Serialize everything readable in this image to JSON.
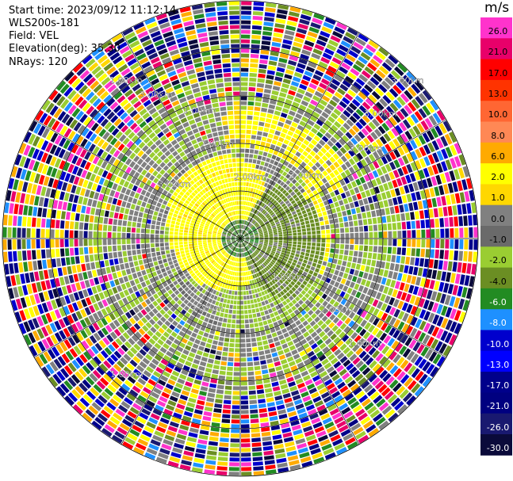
{
  "header": {
    "start_time": "Start time: 2023/09/12 11:12:14",
    "instrument": "WLS200s-181",
    "field": "Field: VEL",
    "elevation": "Elevation(deg): 35.30",
    "nrays": "NRays: 120"
  },
  "colorbar": {
    "unit": "m/s",
    "ticks": [
      "26.0",
      "21.0",
      "17.0",
      "13.0",
      "10.0",
      "8.0",
      "6.0",
      "2.0",
      "1.0",
      "0.0",
      "-1.0",
      "-2.0",
      "-4.0",
      "-6.0",
      "-8.0",
      "-10.0",
      "-13.0",
      "-17.0",
      "-21.0",
      "-26.0",
      "-30.0"
    ],
    "colors": [
      "#ff33cc",
      "#e8006a",
      "#ff0000",
      "#ff3300",
      "#ff6633",
      "#ff8855",
      "#ffaa00",
      "#ffff00",
      "#ffd700",
      "#808080",
      "#6a6a6a",
      "#9acd32",
      "#6b8e23",
      "#228b22",
      "#1e90ff",
      "#0000cd",
      "#0000ff",
      "#00008b",
      "#000080",
      "#191970",
      "#0a0a3a"
    ]
  },
  "chart_data": {
    "type": "heatmap",
    "title": "",
    "field": "VEL",
    "units": "m/s",
    "elevation_deg": 35.3,
    "n_rays": 120,
    "range_rings_km": [
      1.0,
      2.0,
      3.0
    ],
    "range_labels": [
      "1.00km",
      "1.00km",
      "2.00km",
      "2.00km",
      "2.00km",
      "2.00km",
      "3.00km",
      "3.00km",
      "3.00km",
      "3.00km",
      "3.00km",
      "1.00km",
      "2.00km",
      "1.00km",
      "1.00km"
    ],
    "color_levels": [
      26.0,
      21.0,
      17.0,
      13.0,
      10.0,
      8.0,
      6.0,
      2.0,
      1.0,
      0.0,
      -1.0,
      -2.0,
      -4.0,
      -6.0,
      -8.0,
      -10.0,
      -13.0,
      -17.0,
      -21.0,
      -26.0,
      -30.0
    ]
  }
}
